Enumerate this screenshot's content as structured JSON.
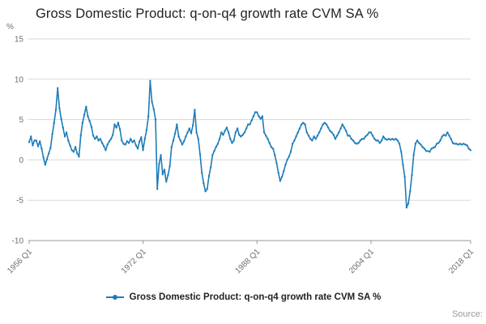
{
  "title": "Gross Domestic Product: q-on-q4 growth rate CVM SA %",
  "unit_label": "%",
  "source_label": "Source:",
  "legend": {
    "label": "Gross Domestic Product: q-on-q4 growth rate CVM SA %"
  },
  "colors": {
    "line": "#1e7cb8",
    "grid": "#d9d9d9",
    "axis": "#999999",
    "tick_text": "#6f6f6f",
    "title_text": "#222222"
  },
  "chart_data": {
    "type": "line",
    "title": "Gross Domestic Product: q-on-q4 growth rate CVM SA %",
    "xlabel": "",
    "ylabel": "%",
    "ylim": [
      -10,
      15
    ],
    "grid": "horizontal",
    "legend_position": "bottom",
    "x_start": "1956 Q1",
    "x_end": "2018 Q1",
    "x_frequency": "quarterly",
    "x_tick_labels": [
      "1956 Q1",
      "1972 Q1",
      "1988 Q1",
      "2004 Q1",
      "2018 Q1"
    ],
    "x_tick_indices": [
      0,
      64,
      128,
      192,
      248
    ],
    "y_ticks": [
      15,
      10,
      5,
      0,
      -5,
      -10
    ],
    "series": [
      {
        "name": "Gross Domestic Product: q-on-q4 growth rate CVM SA %",
        "values": [
          2.2,
          2.9,
          1.8,
          2.4,
          2.4,
          1.7,
          2.3,
          1.4,
          0.3,
          -0.6,
          0.1,
          0.8,
          1.5,
          3.2,
          4.6,
          6.2,
          8.9,
          6.4,
          5.1,
          4.0,
          2.9,
          3.4,
          2.4,
          1.8,
          1.2,
          1.0,
          1.6,
          0.8,
          0.4,
          3.0,
          4.6,
          5.6,
          6.6,
          5.4,
          4.8,
          4.1,
          3.0,
          2.6,
          2.9,
          2.4,
          2.6,
          2.1,
          1.7,
          1.2,
          1.9,
          2.3,
          2.6,
          3.1,
          4.4,
          4.0,
          4.6,
          3.8,
          2.4,
          2.0,
          1.9,
          2.3,
          2.1,
          2.6,
          2.2,
          2.4,
          1.8,
          1.4,
          2.3,
          2.8,
          1.2,
          2.6,
          3.7,
          5.4,
          9.8,
          7.2,
          6.3,
          5.0,
          -3.6,
          -0.5,
          0.6,
          -1.8,
          -1.2,
          -2.7,
          -1.9,
          -0.8,
          1.6,
          2.4,
          3.3,
          4.4,
          2.9,
          2.4,
          1.9,
          2.3,
          2.9,
          3.4,
          3.9,
          3.3,
          4.3,
          6.2,
          3.4,
          2.6,
          0.7,
          -1.6,
          -2.9,
          -3.9,
          -3.6,
          -2.0,
          -0.9,
          0.6,
          1.1,
          1.6,
          2.0,
          2.6,
          3.4,
          3.1,
          3.6,
          4.0,
          3.4,
          2.6,
          2.1,
          2.4,
          3.4,
          3.9,
          3.1,
          2.9,
          3.1,
          3.4,
          3.9,
          4.4,
          4.4,
          4.9,
          5.4,
          5.9,
          5.9,
          5.4,
          5.1,
          5.4,
          3.4,
          3.0,
          2.6,
          2.1,
          1.6,
          1.4,
          0.6,
          -0.4,
          -1.6,
          -2.6,
          -2.1,
          -1.4,
          -0.6,
          0.0,
          0.4,
          1.0,
          2.0,
          2.4,
          2.9,
          3.4,
          3.9,
          4.4,
          4.6,
          4.4,
          3.4,
          3.0,
          2.6,
          2.4,
          2.9,
          2.6,
          3.0,
          3.4,
          3.9,
          4.4,
          4.6,
          4.4,
          4.0,
          3.6,
          3.4,
          3.1,
          2.6,
          3.0,
          3.4,
          3.9,
          4.4,
          4.0,
          3.6,
          3.0,
          3.0,
          2.6,
          2.4,
          2.1,
          2.0,
          2.1,
          2.4,
          2.6,
          2.6,
          2.9,
          3.1,
          3.4,
          3.4,
          3.0,
          2.6,
          2.4,
          2.4,
          2.1,
          2.4,
          2.9,
          2.6,
          2.5,
          2.6,
          2.5,
          2.6,
          2.5,
          2.6,
          2.4,
          2.0,
          1.0,
          -0.6,
          -2.1,
          -5.9,
          -5.4,
          -3.9,
          -1.9,
          0.6,
          2.0,
          2.4,
          2.1,
          1.9,
          1.6,
          1.4,
          1.1,
          1.1,
          1.0,
          1.4,
          1.5,
          1.6,
          2.0,
          2.1,
          2.4,
          2.9,
          3.1,
          3.0,
          3.4,
          3.0,
          2.6,
          2.1,
          2.0,
          2.0,
          1.9,
          2.0,
          1.9,
          2.0,
          1.9,
          1.8,
          1.4,
          1.2
        ]
      }
    ]
  }
}
